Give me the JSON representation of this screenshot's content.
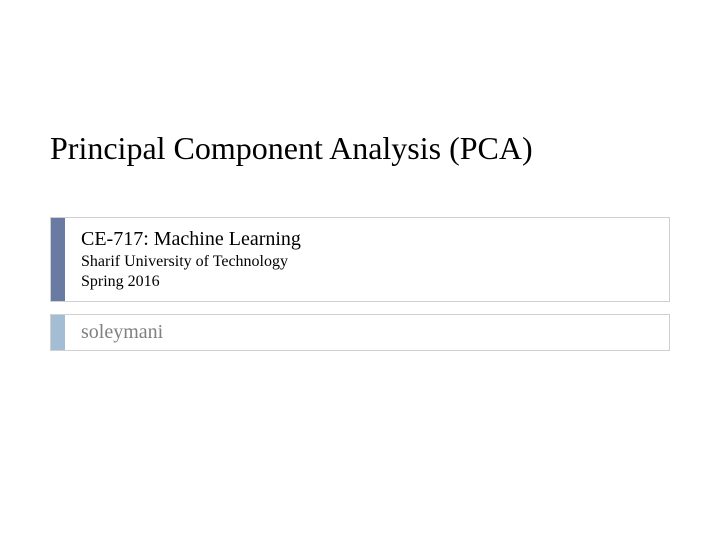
{
  "slide": {
    "title": "Principal Component Analysis (PCA)",
    "course_code": "CE-717: Machine Learning",
    "university": "Sharif University of Technology",
    "semester": "Spring 2016",
    "author": "soleymani"
  },
  "styling": {
    "background_color": "#ffffff",
    "title_fontsize": 32,
    "title_color": "#000000",
    "box_border_color": "#d0d0d0",
    "accent_dark": "#6a7ba3",
    "accent_light": "#a3bdd4",
    "accent_width": 14,
    "course_fontsize": 20,
    "subtitle_fontsize": 16,
    "author_fontsize": 20,
    "author_color": "#808080",
    "font_family": "Georgia, Bookman Old Style, serif"
  }
}
